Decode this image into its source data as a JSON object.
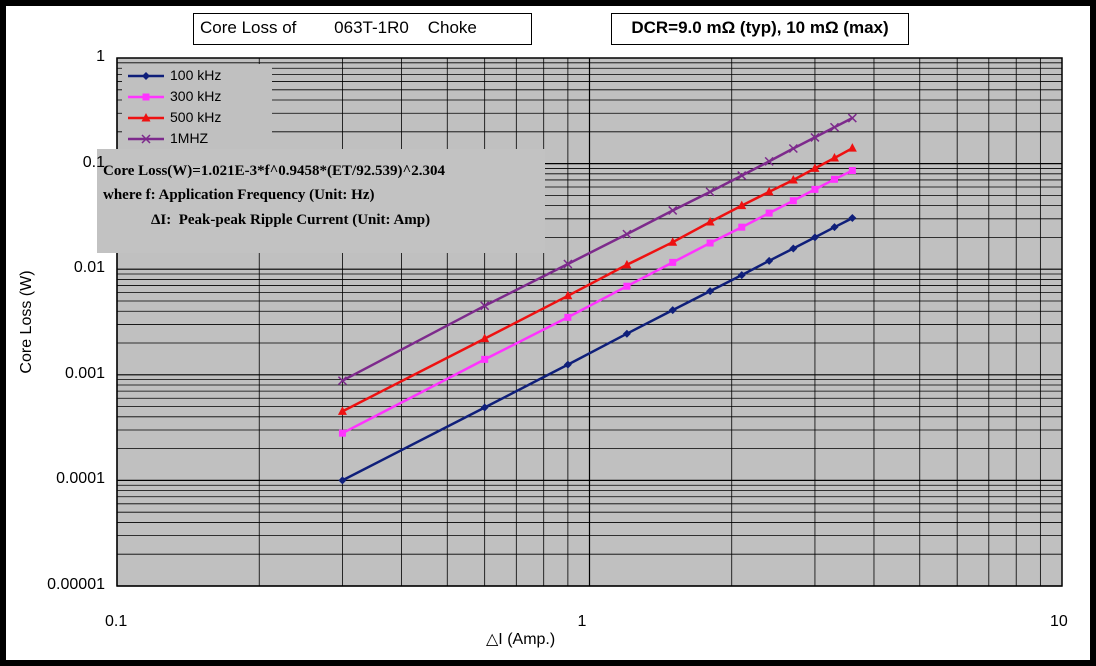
{
  "title": "Core Loss of        063T-1R0    Choke",
  "dcr_note": "DCR=9.0 mΩ (typ), 10 mΩ (max)",
  "formula": {
    "line1": "Core Loss(W)=1.021E-3*f^0.9458*(ET/92.539)^2.304",
    "line2": "where f: Application Frequency (Unit: Hz)",
    "line3": "ΔI:  Peak-peak Ripple Current (Unit: Amp)"
  },
  "colors": {
    "plot_bg": "#c0c0c0",
    "frame": "#000000",
    "series_100k": "#0f1f7a",
    "series_300k": "#ff33ff",
    "series_500k": "#ee1111",
    "series_1M": "#7d2a8c"
  },
  "chart_data": {
    "type": "line",
    "xlabel": "△I (Amp.)",
    "ylabel": "Core Loss (W)",
    "x_scale": "log",
    "y_scale": "log",
    "xlim": [
      0.1,
      10
    ],
    "ylim": [
      1e-05,
      1
    ],
    "x_ticks": [
      "0.1",
      "1",
      "10"
    ],
    "y_ticks": [
      "1",
      "0.1",
      "0.01",
      "0.001",
      "0.0001",
      "0.00001"
    ],
    "grid": true,
    "legend": "top-left",
    "series": [
      {
        "name": "100 kHz",
        "marker": "diamond",
        "x": [
          0.3,
          0.6,
          0.9,
          1.2,
          1.5,
          1.8,
          2.1,
          2.4,
          2.7,
          3.0,
          3.3,
          3.6
        ],
        "y": [
          0.0001,
          0.00049,
          0.00125,
          0.00245,
          0.0041,
          0.0062,
          0.0088,
          0.012,
          0.0157,
          0.02,
          0.025,
          0.0305
        ]
      },
      {
        "name": "300 kHz",
        "marker": "square",
        "x": [
          0.3,
          0.6,
          0.9,
          1.2,
          1.5,
          1.8,
          2.1,
          2.4,
          2.7,
          3.0,
          3.3,
          3.6
        ],
        "y": [
          0.00028,
          0.0014,
          0.0035,
          0.0069,
          0.0116,
          0.0177,
          0.025,
          0.034,
          0.0445,
          0.057,
          0.071,
          0.086
        ]
      },
      {
        "name": "500 kHz",
        "marker": "triangle",
        "x": [
          0.3,
          0.6,
          0.9,
          1.2,
          1.5,
          1.8,
          2.1,
          2.4,
          2.7,
          3.0,
          3.3,
          3.6
        ],
        "y": [
          0.00045,
          0.0022,
          0.0056,
          0.011,
          0.018,
          0.028,
          0.04,
          0.054,
          0.07,
          0.09,
          0.113,
          0.14
        ]
      },
      {
        "name": "1MHZ",
        "marker": "x",
        "x": [
          0.3,
          0.6,
          0.9,
          1.2,
          1.5,
          1.8,
          2.1,
          2.4,
          2.7,
          3.0,
          3.3,
          3.6
        ],
        "y": [
          0.00088,
          0.0045,
          0.0112,
          0.0215,
          0.036,
          0.054,
          0.077,
          0.105,
          0.139,
          0.177,
          0.221,
          0.27
        ]
      }
    ]
  }
}
